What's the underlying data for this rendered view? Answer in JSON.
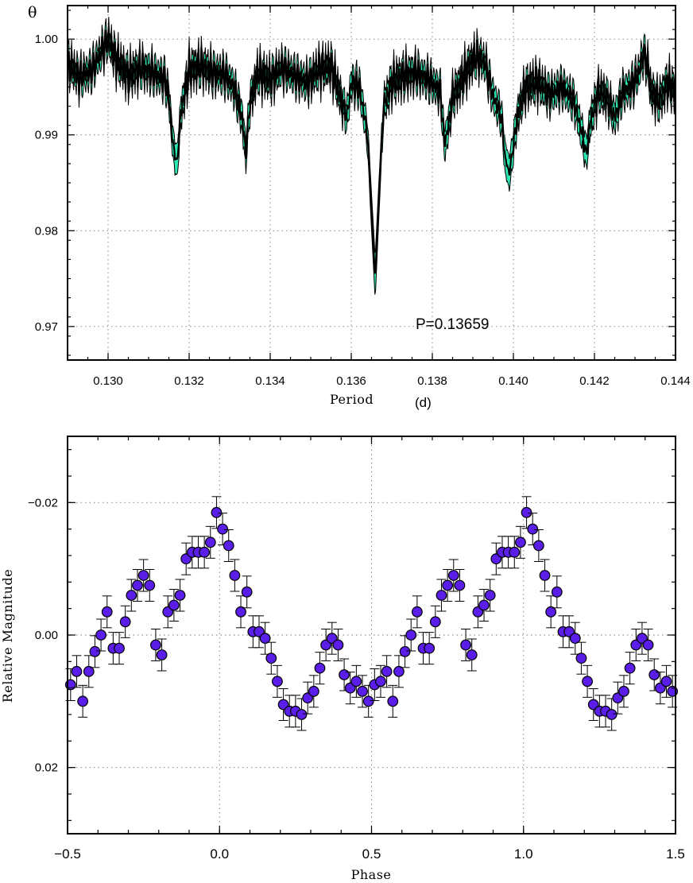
{
  "chart_data": [
    {
      "type": "line",
      "ylabel_symbol": "θ",
      "xlabel": "Period",
      "xunit": "(d)",
      "annotation": "P=0.13659",
      "xlim": [
        0.129,
        0.144
      ],
      "ylim": [
        0.9665,
        1.0035
      ],
      "x_ticks": [
        0.13,
        0.132,
        0.134,
        0.136,
        0.138,
        0.14,
        0.142,
        0.144
      ],
      "x_tick_labels": [
        "0.130",
        "0.132",
        "0.134",
        "0.136",
        "0.138",
        "0.140",
        "0.142",
        "0.144"
      ],
      "y_ticks": [
        0.97,
        0.98,
        0.99,
        1.0
      ],
      "y_tick_labels": [
        "0.97",
        "0.98",
        "0.99",
        "1.00"
      ],
      "grid": true,
      "band_color": "#2ee8b4",
      "line_color": "#000000",
      "theta_curve": {
        "period": [
          0.129,
          0.1293,
          0.1296,
          0.1299,
          0.13,
          0.1302,
          0.1305,
          0.1308,
          0.1311,
          0.1314,
          0.1315,
          0.1316,
          0.1317,
          0.1318,
          0.132,
          0.1323,
          0.1326,
          0.1329,
          0.1331,
          0.1333,
          0.1334,
          0.1335,
          0.1337,
          0.134,
          0.1343,
          0.1346,
          0.1349,
          0.1352,
          0.1355,
          0.1358,
          0.1359,
          0.136,
          0.1362,
          0.1364,
          0.1365,
          0.13659,
          0.1367,
          0.1368,
          0.137,
          0.1373,
          0.1376,
          0.1379,
          0.1382,
          0.1383,
          0.1384,
          0.1385,
          0.1387,
          0.1389,
          0.1391,
          0.1393,
          0.1395,
          0.1397,
          0.1398,
          0.1399,
          0.1401,
          0.1403,
          0.1406,
          0.1409,
          0.1412,
          0.1415,
          0.1417,
          0.1418,
          0.1419,
          0.1421,
          0.1423,
          0.1425,
          0.1427,
          0.1429,
          0.1431,
          0.1432,
          0.1433,
          0.1434,
          0.1436,
          0.1438,
          0.144
        ],
        "theta": [
          0.9975,
          0.996,
          0.9968,
          0.9992,
          1.0,
          0.9978,
          0.9962,
          0.997,
          0.9965,
          0.9958,
          0.994,
          0.989,
          0.987,
          0.9925,
          0.9968,
          0.9972,
          0.9965,
          0.9962,
          0.995,
          0.992,
          0.988,
          0.9935,
          0.9965,
          0.9958,
          0.997,
          0.9962,
          0.9955,
          0.9968,
          0.9972,
          0.993,
          0.992,
          0.9955,
          0.995,
          0.99,
          0.982,
          0.975,
          0.985,
          0.993,
          0.9955,
          0.9962,
          0.9965,
          0.9958,
          0.9945,
          0.989,
          0.991,
          0.994,
          0.9955,
          0.9972,
          0.9982,
          0.9975,
          0.994,
          0.992,
          0.9875,
          0.986,
          0.992,
          0.995,
          0.9955,
          0.9942,
          0.995,
          0.9935,
          0.99,
          0.988,
          0.9915,
          0.9945,
          0.994,
          0.9918,
          0.9945,
          0.995,
          0.9965,
          0.9985,
          0.9975,
          0.9945,
          0.9935,
          0.9955,
          0.9945
        ],
        "band_halfwidth": 0.0012
      }
    },
    {
      "type": "scatter",
      "xlabel": "Phase",
      "ylabel": "Relative Magnitude",
      "xlim": [
        -0.5,
        1.5
      ],
      "ylim": [
        0.03,
        -0.03
      ],
      "y_inverted": true,
      "x_ticks": [
        -0.5,
        0.0,
        0.5,
        1.0,
        1.5
      ],
      "x_tick_labels": [
        "−0.5",
        "0.0",
        "0.5",
        "1.0",
        "1.5"
      ],
      "y_ticks": [
        -0.02,
        0.0,
        0.02
      ],
      "y_tick_labels": [
        "−0.02",
        "0.00",
        "0.02"
      ],
      "grid": true,
      "marker_color": "#5a1ee8",
      "error_bar": 0.0024,
      "points": {
        "phase": [
          -0.49,
          -0.47,
          -0.45,
          -0.43,
          -0.41,
          -0.39,
          -0.37,
          -0.35,
          -0.33,
          -0.31,
          -0.29,
          -0.27,
          -0.25,
          -0.23,
          -0.21,
          -0.19,
          -0.17,
          -0.15,
          -0.13,
          -0.11,
          -0.09,
          -0.07,
          -0.05,
          -0.03,
          -0.01,
          0.01,
          0.03,
          0.05,
          0.07,
          0.09,
          0.11,
          0.13,
          0.15,
          0.17,
          0.19,
          0.21,
          0.23,
          0.25,
          0.27,
          0.29,
          0.31,
          0.33,
          0.35,
          0.37,
          0.39,
          0.41,
          0.43,
          0.45,
          0.47,
          0.49,
          0.51,
          0.53,
          0.55,
          0.57,
          0.59,
          0.61,
          0.63,
          0.65,
          0.67,
          0.69,
          0.71,
          0.73,
          0.75,
          0.77,
          0.79,
          0.81,
          0.83,
          0.85,
          0.87,
          0.89,
          0.91,
          0.93,
          0.95,
          0.97,
          0.99,
          1.01,
          1.03,
          1.05,
          1.07,
          1.09,
          1.11,
          1.13,
          1.15,
          1.17,
          1.19,
          1.21,
          1.23,
          1.25,
          1.27,
          1.29,
          1.31,
          1.33,
          1.35,
          1.37,
          1.39,
          1.41,
          1.43,
          1.45,
          1.47,
          1.49
        ],
        "mag": [
          0.0075,
          0.0055,
          0.01,
          0.0055,
          0.0025,
          0.0,
          -0.0035,
          0.002,
          0.002,
          -0.002,
          -0.006,
          -0.0075,
          -0.009,
          -0.0075,
          0.0015,
          0.003,
          -0.0035,
          -0.0045,
          -0.006,
          -0.0115,
          -0.0125,
          -0.0125,
          -0.0125,
          -0.014,
          -0.0185,
          -0.016,
          -0.0135,
          -0.009,
          -0.0035,
          -0.0065,
          -0.0005,
          -0.0005,
          0.0005,
          0.0035,
          0.007,
          0.0105,
          0.0115,
          0.0115,
          0.012,
          0.0095,
          0.0085,
          0.005,
          0.0015,
          0.0005,
          0.0015,
          0.006,
          0.008,
          0.007,
          0.0085,
          0.01,
          0.0075,
          0.007,
          0.0055,
          0.01,
          0.0055,
          0.0025,
          0.0,
          -0.0035,
          0.002,
          0.002,
          -0.002,
          -0.006,
          -0.0075,
          -0.009,
          -0.0075,
          0.0015,
          0.003,
          -0.0035,
          -0.0045,
          -0.006,
          -0.0115,
          -0.0125,
          -0.0125,
          -0.0125,
          -0.014,
          -0.0185,
          -0.016,
          -0.0135,
          -0.009,
          -0.0035,
          -0.0065,
          -0.0005,
          -0.0005,
          0.0005,
          0.0035,
          0.007,
          0.0105,
          0.0115,
          0.0115,
          0.012,
          0.0095,
          0.0085,
          0.005,
          0.0015,
          0.0005,
          0.0015,
          0.006,
          0.008,
          0.007,
          0.0085
        ]
      }
    }
  ]
}
